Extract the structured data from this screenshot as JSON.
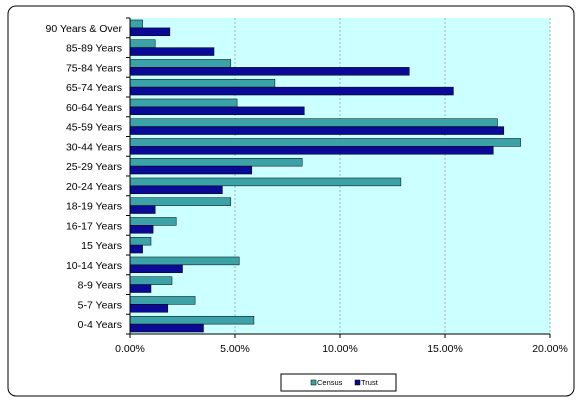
{
  "chart_data": {
    "type": "bar",
    "orientation": "horizontal",
    "categories": [
      "90 Years & Over",
      "85-89 Years",
      "75-84 Years",
      "65-74 Years",
      "60-64 Years",
      "45-59 Years",
      "30-44 Years",
      "25-29 Years",
      "20-24 Years",
      "18-19 Years",
      "16-17 Years",
      "15 Years",
      "10-14 Years",
      "8-9 Years",
      "5-7 Years",
      "0-4 Years"
    ],
    "series": [
      {
        "name": "Census",
        "color": "#3ba3a8",
        "values": [
          0.6,
          1.2,
          4.8,
          6.9,
          5.1,
          17.5,
          18.6,
          8.2,
          12.9,
          4.8,
          2.2,
          1.0,
          5.2,
          2.0,
          3.1,
          5.9
        ]
      },
      {
        "name": "Trust",
        "color": "#0a0a96",
        "values": [
          1.9,
          4.0,
          13.3,
          15.4,
          8.3,
          17.8,
          17.3,
          5.8,
          4.4,
          1.2,
          1.1,
          0.6,
          2.5,
          1.0,
          1.8,
          3.5
        ]
      }
    ],
    "xlim": [
      0,
      20
    ],
    "x_ticks": [
      0,
      5,
      10,
      15,
      20
    ],
    "x_tick_labels": [
      "0.00%",
      "5.00%",
      "10.00%",
      "15.00%",
      "20.00%"
    ],
    "grid": "vertical dashed",
    "legend_position": "bottom"
  },
  "colors": {
    "plot_background": "#ccffff",
    "border": "#000000",
    "gridline": "#808080"
  }
}
